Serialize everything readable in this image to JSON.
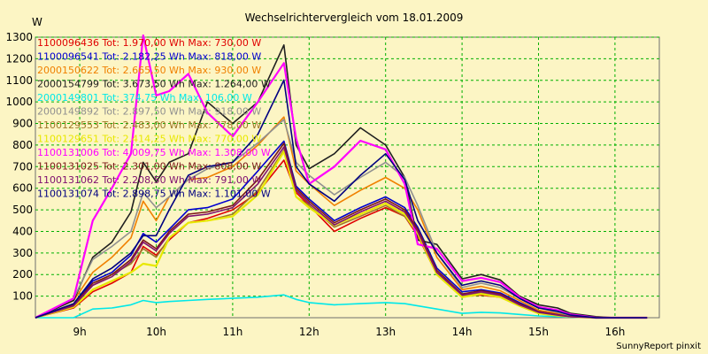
{
  "chart_data": {
    "type": "line",
    "title": "Wechselrichtervergleich vom 18.01.2009",
    "ylabel": "W",
    "xlabel": "",
    "footer": "SunnyReport pinxit",
    "ylim": [
      0,
      1300
    ],
    "xlim": [
      8.42,
      16.58
    ],
    "y_ticks": [
      100,
      200,
      300,
      400,
      500,
      600,
      700,
      800,
      900,
      1000,
      1100,
      1200,
      1300
    ],
    "x_ticks": [
      {
        "value": 9,
        "label": "9h"
      },
      {
        "value": 10,
        "label": "10h"
      },
      {
        "value": 11,
        "label": "11h"
      },
      {
        "value": 12,
        "label": "12h"
      },
      {
        "value": 13,
        "label": "13h"
      },
      {
        "value": 14,
        "label": "14h"
      },
      {
        "value": 15,
        "label": "15h"
      },
      {
        "value": 16,
        "label": "16h"
      }
    ],
    "grid": true,
    "legend_position": "top-left",
    "x": [
      8.42,
      8.92,
      9.17,
      9.42,
      9.67,
      9.83,
      10.0,
      10.17,
      10.42,
      10.67,
      11.0,
      11.33,
      11.67,
      11.83,
      12.0,
      12.33,
      12.67,
      13.0,
      13.25,
      13.42,
      13.67,
      14.0,
      14.25,
      14.5,
      14.75,
      15.0,
      15.25,
      15.42,
      15.75,
      16.0,
      16.17,
      16.42
    ],
    "series": [
      {
        "name": "1100096436 Tot: 1.970,00 Wh Max: 730,00 W",
        "color": "#e00000",
        "values": [
          0,
          45,
          120,
          160,
          210,
          330,
          290,
          360,
          440,
          460,
          500,
          580,
          730,
          580,
          520,
          400,
          460,
          510,
          470,
          380,
          200,
          100,
          105,
          95,
          55,
          20,
          10,
          5,
          0,
          0,
          0,
          0
        ]
      },
      {
        "name": "1100096541 Tot: 2.182,25 Wh Max: 818,00 W",
        "color": "#0000d0",
        "values": [
          0,
          60,
          170,
          210,
          290,
          390,
          350,
          410,
          500,
          510,
          550,
          680,
          818,
          610,
          550,
          450,
          510,
          560,
          510,
          420,
          230,
          120,
          130,
          115,
          70,
          30,
          15,
          5,
          0,
          0,
          0,
          0
        ]
      },
      {
        "name": "2000150622 Tot: 2.665,50 Wh Max: 930,00 W",
        "color": "#f08000",
        "values": [
          0,
          80,
          210,
          280,
          370,
          540,
          450,
          560,
          640,
          650,
          700,
          800,
          930,
          680,
          620,
          520,
          590,
          650,
          600,
          500,
          280,
          130,
          145,
          125,
          80,
          35,
          20,
          8,
          0,
          0,
          0,
          0
        ]
      },
      {
        "name": "2000154799 Tot: 3.673,50 Wh Max: 1.264,00 W",
        "color": "#202020",
        "values": [
          0,
          80,
          280,
          350,
          490,
          720,
          630,
          720,
          760,
          1000,
          900,
          1000,
          1264,
          800,
          690,
          760,
          880,
          800,
          650,
          360,
          340,
          180,
          200,
          175,
          100,
          60,
          45,
          20,
          5,
          0,
          0,
          0
        ]
      },
      {
        "name": "2000149801 Tot: 374,75 Wh Max: 106,00 W",
        "color": "#00e8e8",
        "values": [
          0,
          0,
          40,
          45,
          60,
          80,
          70,
          75,
          80,
          85,
          90,
          95,
          106,
          85,
          70,
          60,
          65,
          70,
          65,
          55,
          40,
          20,
          25,
          22,
          15,
          8,
          5,
          3,
          0,
          0,
          0,
          0
        ]
      },
      {
        "name": "2000149892 Tot: 2.897,50 Wh Max: 918,00 W",
        "color": "#909090",
        "values": [
          0,
          90,
          270,
          330,
          400,
          580,
          510,
          560,
          640,
          690,
          720,
          810,
          918,
          720,
          660,
          570,
          650,
          720,
          650,
          520,
          300,
          140,
          160,
          140,
          90,
          45,
          25,
          10,
          0,
          0,
          0,
          0
        ]
      },
      {
        "name": "1100129553 Tot: 2.483,00 Wh Max: 778,00 W",
        "color": "#a07828",
        "values": [
          0,
          55,
          150,
          200,
          250,
          320,
          280,
          370,
          440,
          450,
          480,
          590,
          778,
          560,
          520,
          420,
          470,
          520,
          470,
          390,
          210,
          100,
          115,
          100,
          60,
          25,
          12,
          5,
          0,
          0,
          0,
          0
        ]
      },
      {
        "name": "1100129651 Tot: 2.414,25 Wh Max: 770,00 W",
        "color": "#e8e800",
        "values": [
          0,
          50,
          130,
          170,
          210,
          250,
          240,
          370,
          440,
          450,
          470,
          570,
          770,
          560,
          510,
          430,
          480,
          530,
          480,
          390,
          200,
          95,
          110,
          95,
          55,
          20,
          10,
          5,
          0,
          0,
          0,
          0
        ]
      },
      {
        "name": "1100131006 Tot: 4.009,75 Wh Max: 1.308,00 W",
        "color": "#ff00ff",
        "values": [
          0,
          90,
          450,
          600,
          760,
          1308,
          1030,
          1050,
          1130,
          950,
          840,
          1000,
          1180,
          830,
          620,
          700,
          820,
          780,
          620,
          340,
          320,
          170,
          185,
          165,
          95,
          50,
          35,
          15,
          0,
          0,
          0,
          0
        ]
      },
      {
        "name": "1100131025 Tot: 2.301,00 Wh Max: 808,00 W",
        "color": "#7b1818",
        "values": [
          0,
          60,
          160,
          200,
          270,
          360,
          320,
          400,
          480,
          490,
          520,
          640,
          808,
          600,
          540,
          440,
          500,
          550,
          500,
          410,
          220,
          110,
          125,
          110,
          65,
          28,
          14,
          5,
          0,
          0,
          0,
          0
        ]
      },
      {
        "name": "1100131062 Tot: 2.208,50 Wh Max: 791,00 W",
        "color": "#801070",
        "values": [
          0,
          55,
          150,
          190,
          260,
          350,
          310,
          390,
          470,
          480,
          510,
          620,
          791,
          590,
          530,
          430,
          490,
          540,
          490,
          400,
          210,
          105,
          120,
          105,
          60,
          25,
          12,
          5,
          0,
          0,
          0,
          0
        ]
      },
      {
        "name": "1100131074 Tot: 2.898,75 Wh Max: 1.101,00 W",
        "color": "#000080",
        "values": [
          0,
          65,
          180,
          230,
          300,
          380,
          380,
          500,
          660,
          700,
          720,
          850,
          1101,
          700,
          620,
          540,
          660,
          760,
          640,
          450,
          300,
          150,
          170,
          150,
          90,
          45,
          30,
          12,
          0,
          0,
          0,
          0
        ]
      }
    ]
  }
}
